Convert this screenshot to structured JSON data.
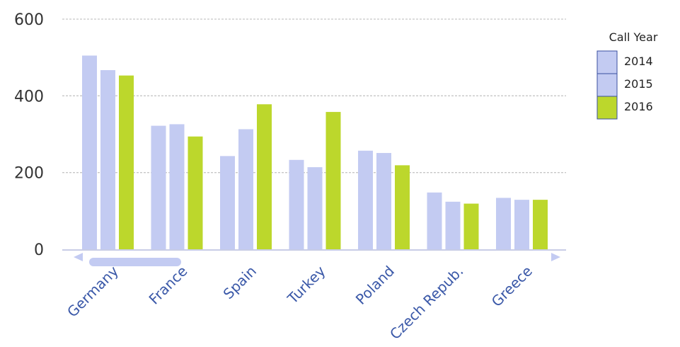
{
  "chart_data": {
    "type": "bar",
    "categories": [
      "Germany",
      "France",
      "Spain",
      "Turkey",
      "Poland",
      "Czech Repub.",
      "Greece"
    ],
    "series": [
      {
        "name": "2014",
        "values": [
          505,
          322,
          243,
          233,
          257,
          148,
          134
        ]
      },
      {
        "name": "2015",
        "values": [
          467,
          326,
          313,
          214,
          251,
          124,
          129
        ]
      },
      {
        "name": "2016",
        "values": [
          453,
          294,
          378,
          358,
          219,
          119,
          129
        ]
      }
    ],
    "yticks": [
      0,
      200,
      400,
      600
    ],
    "ylim": [
      0,
      600
    ],
    "legend_title": "Call Year",
    "legend_position": "top-right",
    "grid": true,
    "colors": {
      "2014": "#c3cbf2",
      "2015": "#c3cbf2",
      "2016": "#bcd72c",
      "grid": "#c7c7c7",
      "axis": "#c8cde6",
      "tick_label": "#3a58a8",
      "scrollbar": "#c3cbf2"
    }
  }
}
